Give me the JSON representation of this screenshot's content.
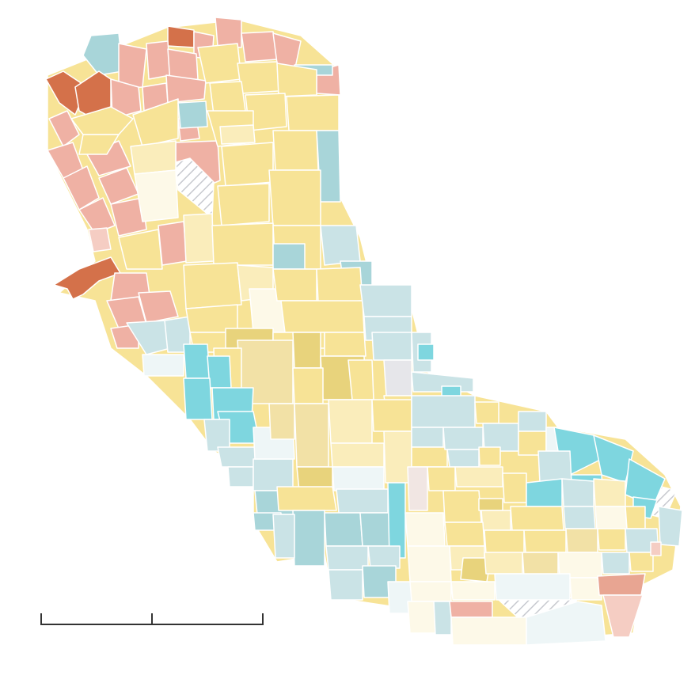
{
  "map": {
    "legend_colors": {
      "dark_orange": "#d4714a",
      "salmon": "#efb1a4",
      "light_salmon": "#f5cdc3",
      "gold": "#e8d37c",
      "yellow": "#f7e396",
      "pale_yellow": "#faedbb",
      "cream": "#fdf9e8",
      "light_blue": "#cae3e6",
      "teal": "#a8d5d9",
      "turquoise": "#7ed6df",
      "ice": "#eef6f7",
      "gray": "#e6e6ea"
    },
    "hatched_meaning": "no data",
    "scale_bar": {
      "segments": 2
    }
  }
}
